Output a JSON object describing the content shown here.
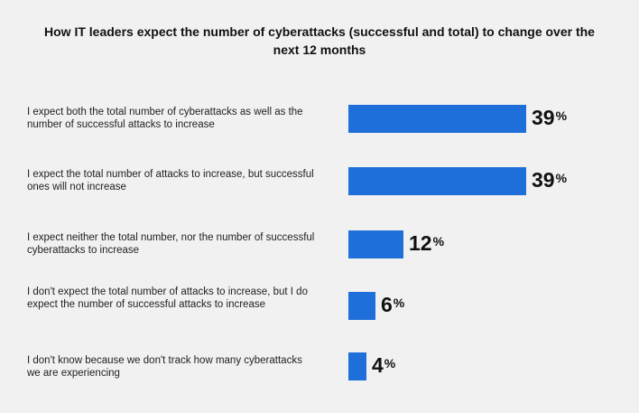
{
  "chart_data": {
    "type": "bar",
    "orientation": "horizontal",
    "title": "How IT leaders expect the number of cyberattacks (successful and total) to change over the next 12 months",
    "categories": [
      "I expect both the total number of cyberattacks as well as the number of successful attacks to increase",
      "I expect the total number of attacks to increase, but successful ones will not increase",
      "I expect neither the total number, nor the number of successful cyberattacks to increase",
      "I don't expect the total number of attacks to increase, but I do expect the number of successful attacks to increase",
      "I don't know because we don't track how many cyberattacks we are experiencing"
    ],
    "values": [
      39,
      39,
      12,
      6,
      4
    ],
    "value_labels": [
      "39",
      "39",
      "12",
      "6",
      "4"
    ],
    "value_suffix": "%",
    "xlim": [
      0,
      39
    ],
    "bar_color": "#1e6fd9",
    "grid": false,
    "legend": "none"
  }
}
